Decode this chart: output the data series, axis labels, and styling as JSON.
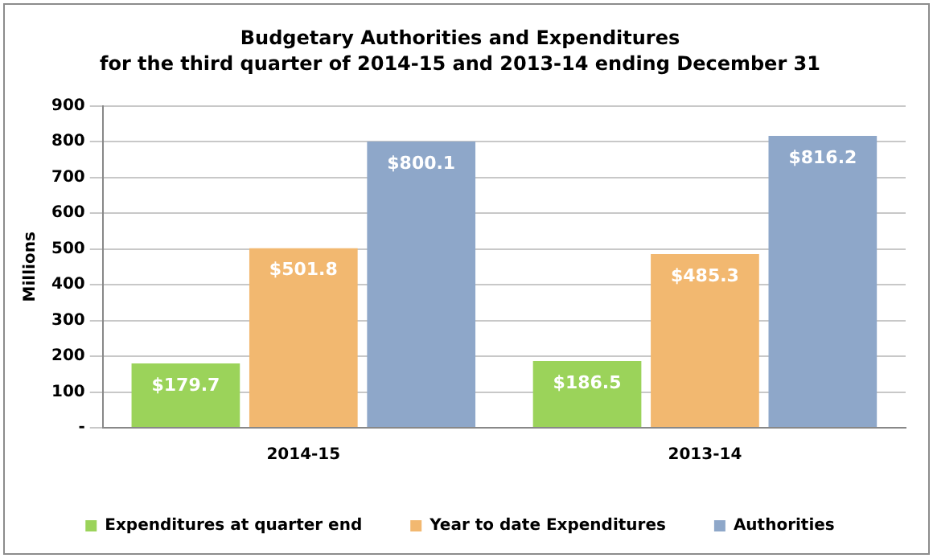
{
  "chart_data": {
    "type": "bar",
    "title": "Budgetary Authorities and Expenditures",
    "subtitle": "for the third quarter of 2014-15 and 2013-14 ending December 31",
    "ylabel": "Millions",
    "categories": [
      "2014-15",
      "2013-14"
    ],
    "series": [
      {
        "name": "Expenditures at quarter end",
        "color": "#9bd35a",
        "values": [
          179.7,
          186.5
        ],
        "value_labels": [
          "$179.7",
          "$186.5"
        ]
      },
      {
        "name": "Year to date Expenditures",
        "color": "#f2b870",
        "values": [
          501.8,
          485.3
        ],
        "value_labels": [
          "$501.8",
          "$485.3"
        ]
      },
      {
        "name": "Authorities",
        "color": "#8ea7c9",
        "values": [
          800.1,
          816.2
        ],
        "value_labels": [
          "$800.1",
          "$816.2"
        ]
      }
    ],
    "ylim": [
      0,
      900
    ],
    "yticks": [
      {
        "value": 0,
        "label": "-"
      },
      100,
      200,
      300,
      400,
      500,
      600,
      700,
      800,
      900
    ],
    "grid": "y",
    "legend": "bottom"
  }
}
